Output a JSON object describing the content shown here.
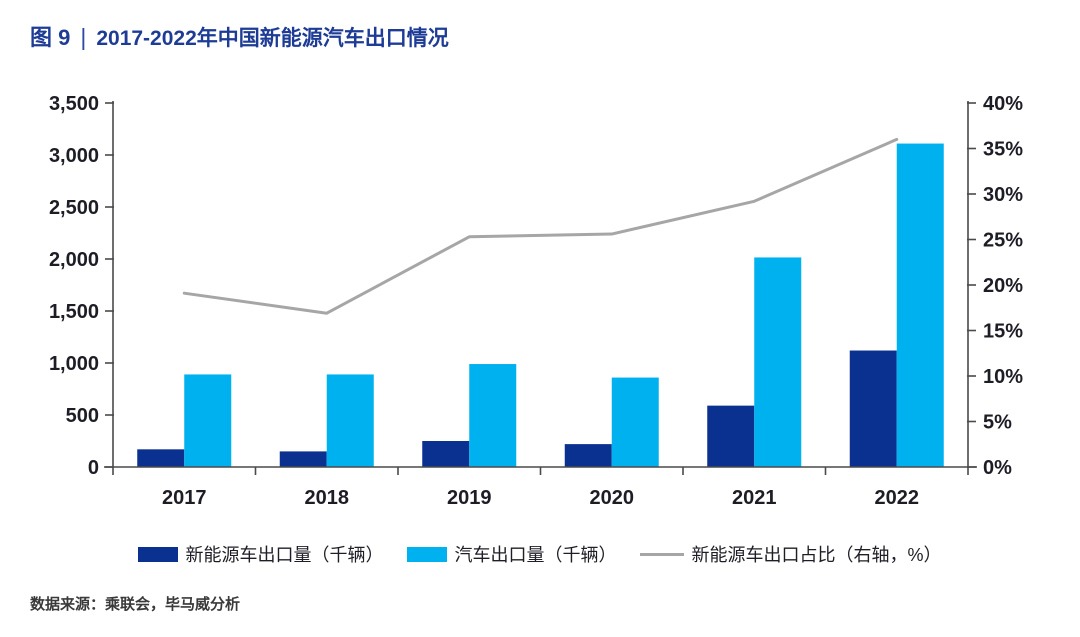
{
  "figure": {
    "label": "图 9",
    "separator": "|",
    "title": "2017-2022年中国新能源汽车出口情况"
  },
  "source": "数据来源：乘联会，毕马威分析",
  "colors": {
    "title_blue": "#1e3c96",
    "nev_bar": "#0a318f",
    "auto_bar": "#00b1f0",
    "share_line": "#a6a6a6",
    "axis": "#4a4a4a",
    "tick_text": "#1d1d26"
  },
  "chart_data": {
    "type": "bar",
    "note": "grouped bars on left axis (thousand units) + line on right axis (%)",
    "title": "2017-2022年中国新能源汽车出口情况",
    "categories": [
      "2017",
      "2018",
      "2019",
      "2020",
      "2021",
      "2022"
    ],
    "series": [
      {
        "name": "新能源车出口量（千辆）",
        "kind": "bar",
        "axis": "left",
        "color": "#0a318f",
        "values": [
          170,
          150,
          250,
          220,
          590,
          1120
        ]
      },
      {
        "name": "汽车出口量（千辆）",
        "kind": "bar",
        "axis": "left",
        "color": "#00b1f0",
        "values": [
          890,
          890,
          990,
          860,
          2015,
          3110
        ]
      },
      {
        "name": "新能源车出口占比（右轴，%）",
        "kind": "line",
        "axis": "right",
        "color": "#a6a6a6",
        "values": [
          19.1,
          16.9,
          25.3,
          25.6,
          29.2,
          36.0
        ]
      }
    ],
    "left_axis": {
      "min": 0,
      "max": 3500,
      "step": 500,
      "tick_labels": [
        "0",
        "500",
        "1,000",
        "1,500",
        "2,000",
        "2,500",
        "3,000",
        "3,500"
      ]
    },
    "right_axis": {
      "min": 0,
      "max": 40,
      "step": 5,
      "tick_labels": [
        "0%",
        "5%",
        "10%",
        "15%",
        "20%",
        "25%",
        "30%",
        "35%",
        "40%"
      ]
    },
    "grid": false,
    "legend_position": "bottom"
  },
  "legend": {
    "items": [
      {
        "label": "新能源车出口量（千辆）",
        "swatch": "rect",
        "color": "#0a318f"
      },
      {
        "label": "汽车出口量（千辆）",
        "swatch": "rect",
        "color": "#00b1f0"
      },
      {
        "label": "新能源车出口占比（右轴，%）",
        "swatch": "line",
        "color": "#a6a6a6"
      }
    ]
  }
}
